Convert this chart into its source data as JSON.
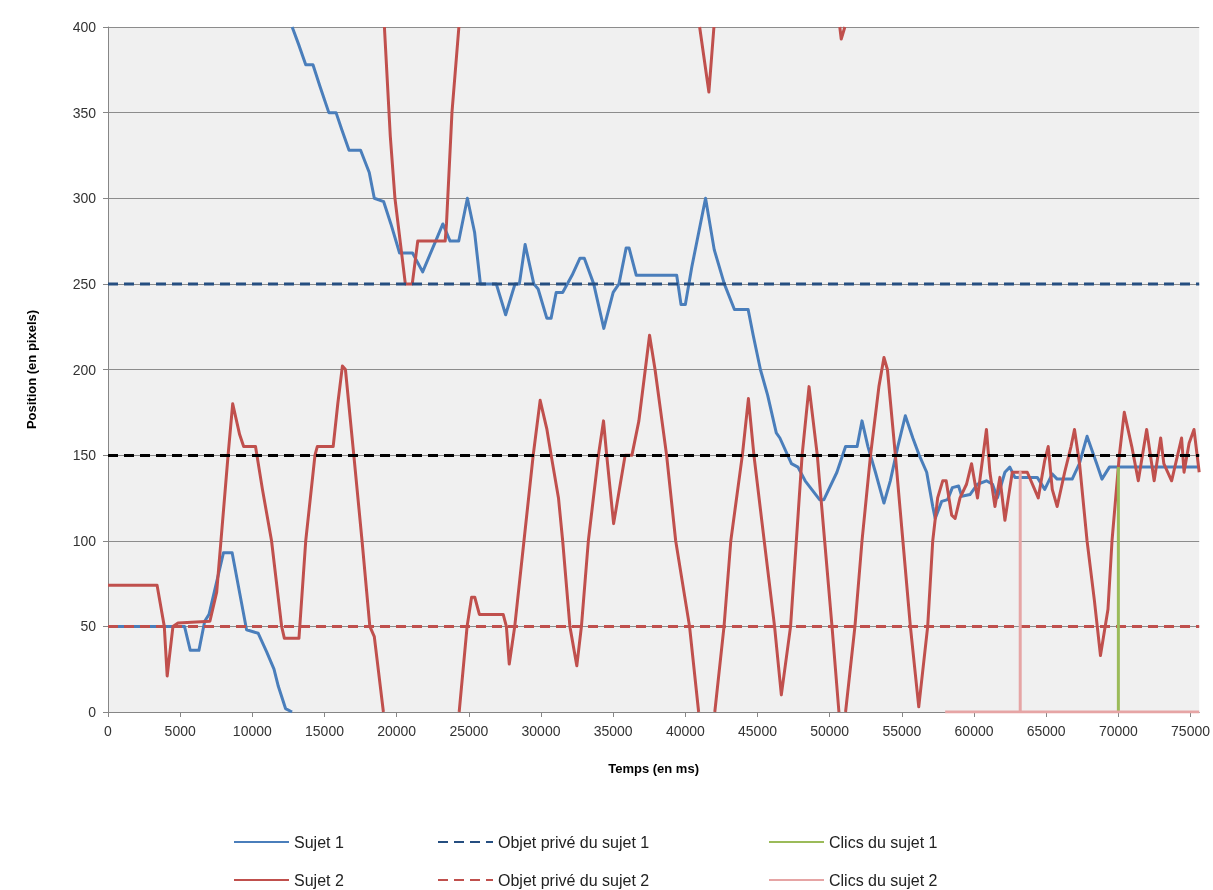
{
  "chart_data": {
    "type": "line",
    "xlabel": "Temps (en ms)",
    "ylabel": "Position (en pixels)",
    "xlim": [
      0,
      75600
    ],
    "xticks": [
      0,
      5000,
      10000,
      15000,
      20000,
      25000,
      30000,
      35000,
      40000,
      45000,
      50000,
      55000,
      60000,
      65000,
      70000,
      75000
    ],
    "ylim": [
      0,
      400
    ],
    "yticks": [
      0,
      50,
      100,
      150,
      200,
      250,
      300,
      350,
      400
    ],
    "grid": "y",
    "legend": "bottom",
    "marker": "none",
    "line_style": "solid",
    "ref_lines": [
      {
        "axis": "y",
        "value": 150,
        "label": null,
        "color": "#000000",
        "line_style": "dashed"
      }
    ],
    "series": [
      {
        "name": "Sujet 1",
        "color": "#4a7ebb",
        "x": [
          0,
          5300,
          5700,
          6300,
          6700,
          7000,
          8000,
          8600,
          9600,
          10400,
          11000,
          11500,
          11800,
          12300,
          12750,
          null,
          12760,
          13200,
          13700,
          14200,
          14700,
          15300,
          15800,
          16200,
          16700,
          17500,
          18100,
          18450,
          19100,
          19600,
          20200,
          21100,
          21800,
          22700,
          23200,
          23700,
          24300,
          24900,
          25400,
          25800,
          26900,
          27550,
          28200,
          28500,
          28900,
          29500,
          29800,
          30400,
          30700,
          31050,
          31500,
          32150,
          32700,
          33000,
          33650,
          34350,
          35000,
          35400,
          35900,
          36100,
          36600,
          39400,
          39700,
          40000,
          40450,
          41400,
          42000,
          42700,
          43400,
          44350,
          44700,
          45200,
          45700,
          46300,
          46550,
          47350,
          47800,
          48300,
          49300,
          49600,
          50500,
          51100,
          51900,
          52240,
          52650,
          53170,
          53760,
          54200,
          54720,
          55240,
          55760,
          56200,
          56720,
          57140,
          57310,
          57760,
          58170,
          58500,
          58930,
          59150,
          59720,
          60240,
          60860,
          61280,
          61620,
          62140,
          62480,
          62830,
          64380,
          64900,
          65420,
          65760,
          66800,
          67300,
          67830,
          68500,
          68860,
          69380,
          75600
        ],
        "values": [
          50,
          50,
          36,
          36,
          53,
          57,
          93,
          93,
          48,
          46,
          35,
          25,
          15,
          2,
          0,
          null,
          400,
          390,
          378,
          378,
          365,
          350,
          350,
          340,
          328,
          328,
          315,
          300,
          298,
          285,
          268,
          268,
          257,
          275,
          285,
          275,
          275,
          300,
          280,
          250,
          250,
          232,
          250,
          250,
          273,
          250,
          247,
          230,
          230,
          245,
          245,
          255,
          265,
          265,
          250,
          224,
          245,
          250,
          271,
          271,
          255,
          255,
          238,
          238,
          260,
          300,
          270,
          250,
          235,
          235,
          220,
          200,
          185,
          163,
          160,
          145,
          143,
          135,
          124,
          124,
          140,
          155,
          155,
          170,
          155,
          140,
          122,
          135,
          155,
          173,
          160,
          150,
          140,
          120,
          113,
          123,
          124,
          131,
          132,
          126,
          127,
          133,
          135,
          133,
          125,
          140,
          143,
          137,
          137,
          130,
          139,
          136,
          136,
          145,
          161,
          145,
          136,
          143,
          143
        ]
      },
      {
        "name": "Sujet 2",
        "color": "#c0504d",
        "x": [
          0,
          3400,
          3900,
          4100,
          4500,
          4850,
          7060,
          7530,
          8320,
          8640,
          9120,
          9400,
          10220,
          10700,
          11330,
          12030,
          12220,
          13230,
          13700,
          14340,
          14500,
          15600,
          15920,
          16240,
          16450,
          17030,
          17600,
          18140,
          18450,
          19080,
          null,
          19150,
          19560,
          19880,
          20600,
          21080,
          21460,
          23360,
          23450,
          23830,
          24310,
          null,
          24330,
          24880,
          25190,
          25410,
          25730,
          27380,
          27600,
          27800,
          28180,
          28820,
          29460,
          29940,
          30410,
          30700,
          31210,
          31500,
          32000,
          32480,
          32800,
          33280,
          33980,
          34330,
          34550,
          35030,
          35830,
          36300,
          36780,
          37520,
          37900,
          38700,
          39330,
          40290,
          40920,
          null,
          40990,
          41630,
          41980,
          null,
          42040,
          42680,
          43150,
          43950,
          44370,
          44750,
          45320,
          46180,
          46650,
          47290,
          48090,
          48570,
          49140,
          49650,
          50160,
          50640,
          null,
          50700,
          50800,
          51050,
          null,
          51100,
          51750,
          52240,
          52830,
          53410,
          53760,
          54000,
          54550,
          55070,
          55590,
          56170,
          56790,
          57140,
          57480,
          57830,
          58070,
          58450,
          58690,
          59030,
          59480,
          59830,
          60240,
          60860,
          61100,
          61450,
          61790,
          62140,
          62650,
          63690,
          64200,
          64450,
          64900,
          65140,
          65420,
          65760,
          66280,
          66720,
          66960,
          67310,
          67830,
          68340,
          68760,
          69280,
          69560,
          70070,
          70410,
          70930,
          71380,
          71960,
          72480,
          72930,
          73150,
          73690,
          74380,
          74550,
          74900,
          75240,
          75600
        ],
        "values": [
          74,
          74,
          50,
          21,
          50,
          52,
          53,
          70,
          150,
          180,
          162,
          155,
          155,
          130,
          100,
          50,
          43,
          43,
          100,
          150,
          155,
          155,
          180,
          202,
          200,
          150,
          100,
          50,
          44,
          0,
          null,
          400,
          336,
          300,
          250,
          250,
          275,
          275,
          285,
          350,
          400,
          null,
          0,
          50,
          67,
          67,
          57,
          57,
          50,
          28,
          50,
          100,
          150,
          182,
          165,
          150,
          125,
          100,
          50,
          27,
          50,
          100,
          150,
          170,
          150,
          110,
          150,
          150,
          170,
          220,
          200,
          150,
          100,
          50,
          0,
          null,
          400,
          362,
          400,
          null,
          0,
          50,
          100,
          150,
          183,
          150,
          110,
          50,
          10,
          50,
          150,
          190,
          150,
          100,
          50,
          0,
          null,
          400,
          393,
          400,
          null,
          0,
          50,
          100,
          150,
          190,
          207,
          200,
          150,
          100,
          50,
          3,
          50,
          100,
          125,
          135,
          135,
          115,
          113,
          125,
          133,
          145,
          125,
          165,
          140,
          120,
          137,
          112,
          140,
          140,
          130,
          125,
          147,
          155,
          130,
          120,
          140,
          155,
          165,
          145,
          100,
          65,
          33,
          60,
          100,
          150,
          175,
          155,
          135,
          165,
          135,
          160,
          145,
          135,
          160,
          140,
          157,
          165,
          140
        ]
      },
      {
        "name": "Objet privé du sujet 1",
        "color": "#254e80",
        "line_style": "dashed",
        "x": [
          0,
          75600
        ],
        "values": [
          250,
          250
        ]
      },
      {
        "name": "Objet privé du sujet 2",
        "color": "#c0504d",
        "line_style": "dashed",
        "x": [
          0,
          75600
        ],
        "values": [
          50,
          50
        ]
      },
      {
        "name": "Clics du sujet 1",
        "color": "#9bbb59",
        "x": [
          70000,
          70000
        ],
        "values": [
          0,
          143
        ]
      },
      {
        "name": "Clics du sujet 2",
        "color": "#e6a5a5",
        "x": [
          58000,
          63200,
          63200,
          63200,
          75600
        ],
        "values": [
          0,
          0,
          140,
          0,
          0
        ]
      }
    ]
  }
}
